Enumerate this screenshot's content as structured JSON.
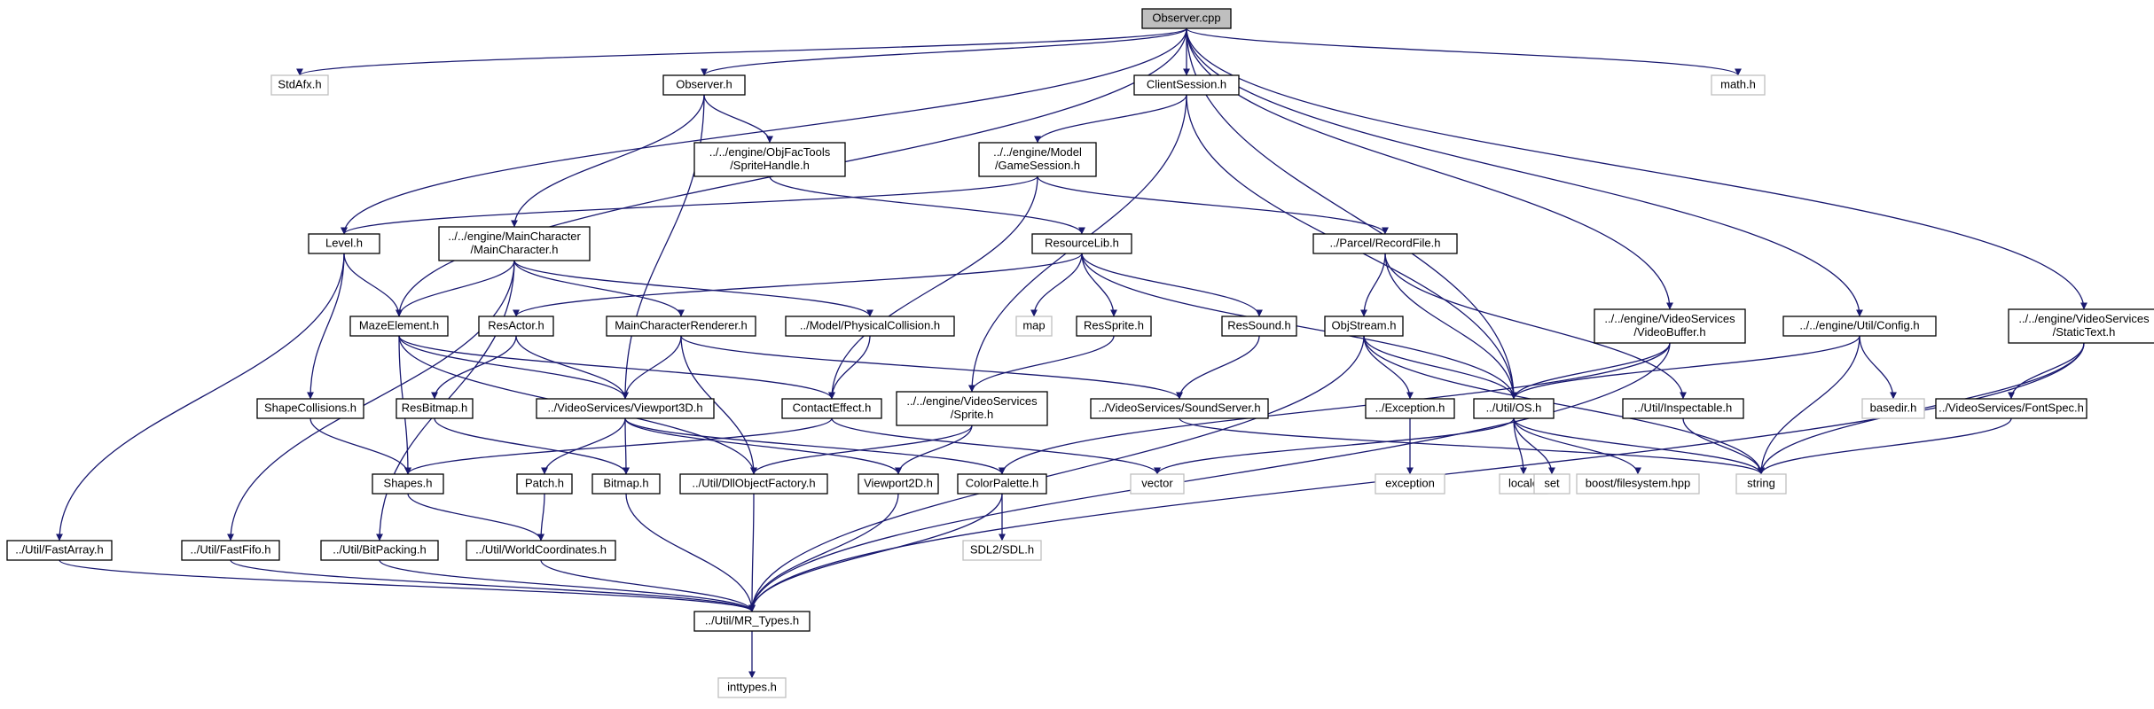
{
  "colors": {
    "edge": "#191970",
    "main_fill": "#bfbfbf",
    "box_stroke": "#000000",
    "external_stroke": "#bfbfbf"
  },
  "nodes": {
    "observer_cpp": {
      "lines": [
        "Observer.cpp"
      ],
      "kind": "main"
    },
    "stdafx_h": {
      "lines": [
        "StdAfx.h"
      ],
      "kind": "external"
    },
    "observer_h": {
      "lines": [
        "Observer.h"
      ],
      "kind": "local"
    },
    "clientsession_h": {
      "lines": [
        "ClientSession.h"
      ],
      "kind": "local"
    },
    "math_h": {
      "lines": [
        "math.h"
      ],
      "kind": "external"
    },
    "spritehandle_h": {
      "lines": [
        "../../engine/ObjFacTools",
        "/SpriteHandle.h"
      ],
      "kind": "local"
    },
    "gamesession_h": {
      "lines": [
        "../../engine/Model",
        "/GameSession.h"
      ],
      "kind": "local"
    },
    "level_h": {
      "lines": [
        "Level.h"
      ],
      "kind": "local"
    },
    "maincharacter_h": {
      "lines": [
        "../../engine/MainCharacter",
        "/MainCharacter.h"
      ],
      "kind": "local"
    },
    "resourcelib_h": {
      "lines": [
        "ResourceLib.h"
      ],
      "kind": "local"
    },
    "recordfile_h": {
      "lines": [
        "../Parcel/RecordFile.h"
      ],
      "kind": "local"
    },
    "videobuffer_h": {
      "lines": [
        "../../engine/VideoServices",
        "/VideoBuffer.h"
      ],
      "kind": "local"
    },
    "config_h": {
      "lines": [
        "../../engine/Util/Config.h"
      ],
      "kind": "local"
    },
    "statictext_h": {
      "lines": [
        "../../engine/VideoServices",
        "/StaticText.h"
      ],
      "kind": "local"
    },
    "mazeelement_h": {
      "lines": [
        "MazeElement.h"
      ],
      "kind": "local"
    },
    "resactor_h": {
      "lines": [
        "ResActor.h"
      ],
      "kind": "local"
    },
    "maincharrenderer_h": {
      "lines": [
        "MainCharacterRenderer.h"
      ],
      "kind": "local"
    },
    "physicalcollision_h": {
      "lines": [
        "../Model/PhysicalCollision.h"
      ],
      "kind": "local"
    },
    "map": {
      "lines": [
        "map"
      ],
      "kind": "external"
    },
    "ressprite_h": {
      "lines": [
        "ResSprite.h"
      ],
      "kind": "local"
    },
    "ressound_h": {
      "lines": [
        "ResSound.h"
      ],
      "kind": "local"
    },
    "objstream_h": {
      "lines": [
        "ObjStream.h"
      ],
      "kind": "local"
    },
    "basedir_h": {
      "lines": [
        "basedir.h"
      ],
      "kind": "external"
    },
    "shapecollisions_h": {
      "lines": [
        "ShapeCollisions.h"
      ],
      "kind": "local"
    },
    "resbitmap_h": {
      "lines": [
        "ResBitmap.h"
      ],
      "kind": "local"
    },
    "viewport3d_h": {
      "lines": [
        "../VideoServices/Viewport3D.h"
      ],
      "kind": "local"
    },
    "contacteffect_h": {
      "lines": [
        "ContactEffect.h"
      ],
      "kind": "local"
    },
    "sprite_h": {
      "lines": [
        "../../engine/VideoServices",
        "/Sprite.h"
      ],
      "kind": "local"
    },
    "soundserver_h": {
      "lines": [
        "../VideoServices/SoundServer.h"
      ],
      "kind": "local"
    },
    "exception_h": {
      "lines": [
        "../Exception.h"
      ],
      "kind": "local"
    },
    "os_h": {
      "lines": [
        "../Util/OS.h"
      ],
      "kind": "local"
    },
    "inspectable_h": {
      "lines": [
        "../Util/Inspectable.h"
      ],
      "kind": "local"
    },
    "fontspec_h": {
      "lines": [
        "../VideoServices/FontSpec.h"
      ],
      "kind": "local"
    },
    "shapes_h": {
      "lines": [
        "Shapes.h"
      ],
      "kind": "local"
    },
    "patch_h": {
      "lines": [
        "Patch.h"
      ],
      "kind": "local"
    },
    "bitmap_h": {
      "lines": [
        "Bitmap.h"
      ],
      "kind": "local"
    },
    "dllobjectfactory_h": {
      "lines": [
        "../Util/DllObjectFactory.h"
      ],
      "kind": "local"
    },
    "viewport2d_h": {
      "lines": [
        "Viewport2D.h"
      ],
      "kind": "local"
    },
    "colorpalette_h": {
      "lines": [
        "ColorPalette.h"
      ],
      "kind": "local"
    },
    "vector": {
      "lines": [
        "vector"
      ],
      "kind": "external"
    },
    "exception": {
      "lines": [
        "exception"
      ],
      "kind": "external"
    },
    "locale": {
      "lines": [
        "locale"
      ],
      "kind": "external"
    },
    "set": {
      "lines": [
        "set"
      ],
      "kind": "external"
    },
    "boost_filesystem": {
      "lines": [
        "boost/filesystem.hpp"
      ],
      "kind": "external"
    },
    "string": {
      "lines": [
        "string"
      ],
      "kind": "external"
    },
    "sdl_h": {
      "lines": [
        "SDL2/SDL.h"
      ],
      "kind": "external"
    },
    "fastarray_h": {
      "lines": [
        "../Util/FastArray.h"
      ],
      "kind": "local"
    },
    "fastfifo_h": {
      "lines": [
        "../Util/FastFifo.h"
      ],
      "kind": "local"
    },
    "bitpacking_h": {
      "lines": [
        "../Util/BitPacking.h"
      ],
      "kind": "local"
    },
    "worldcoordinates_h": {
      "lines": [
        "../Util/WorldCoordinates.h"
      ],
      "kind": "local"
    },
    "mr_types_h": {
      "lines": [
        "../Util/MR_Types.h"
      ],
      "kind": "local"
    },
    "inttypes_h": {
      "lines": [
        "inttypes.h"
      ],
      "kind": "external"
    }
  },
  "edges": [
    [
      "observer_cpp",
      "stdafx_h"
    ],
    [
      "observer_cpp",
      "observer_h"
    ],
    [
      "observer_cpp",
      "clientsession_h"
    ],
    [
      "observer_cpp",
      "math_h"
    ],
    [
      "observer_cpp",
      "level_h"
    ],
    [
      "observer_cpp",
      "mazeelement_h"
    ],
    [
      "observer_cpp",
      "os_h"
    ],
    [
      "observer_cpp",
      "videobuffer_h"
    ],
    [
      "observer_cpp",
      "config_h"
    ],
    [
      "observer_cpp",
      "statictext_h"
    ],
    [
      "observer_h",
      "spritehandle_h"
    ],
    [
      "observer_h",
      "maincharacter_h"
    ],
    [
      "observer_h",
      "viewport3d_h"
    ],
    [
      "clientsession_h",
      "gamesession_h"
    ],
    [
      "clientsession_h",
      "sprite_h"
    ],
    [
      "clientsession_h",
      "os_h"
    ],
    [
      "spritehandle_h",
      "resourcelib_h"
    ],
    [
      "gamesession_h",
      "level_h"
    ],
    [
      "gamesession_h",
      "recordfile_h"
    ],
    [
      "gamesession_h",
      "contacteffect_h"
    ],
    [
      "level_h",
      "mazeelement_h"
    ],
    [
      "level_h",
      "shapecollisions_h"
    ],
    [
      "level_h",
      "fastarray_h"
    ],
    [
      "maincharacter_h",
      "mazeelement_h"
    ],
    [
      "maincharacter_h",
      "maincharrenderer_h"
    ],
    [
      "maincharacter_h",
      "physicalcollision_h"
    ],
    [
      "maincharacter_h",
      "fastfifo_h"
    ],
    [
      "maincharacter_h",
      "bitpacking_h"
    ],
    [
      "resourcelib_h",
      "resactor_h"
    ],
    [
      "resourcelib_h",
      "map"
    ],
    [
      "resourcelib_h",
      "ressprite_h"
    ],
    [
      "resourcelib_h",
      "ressound_h"
    ],
    [
      "resourcelib_h",
      "os_h"
    ],
    [
      "recordfile_h",
      "objstream_h"
    ],
    [
      "recordfile_h",
      "os_h"
    ],
    [
      "recordfile_h",
      "inspectable_h"
    ],
    [
      "videobuffer_h",
      "os_h"
    ],
    [
      "videobuffer_h",
      "colorpalette_h"
    ],
    [
      "videobuffer_h",
      "mr_types_h"
    ],
    [
      "config_h",
      "os_h"
    ],
    [
      "config_h",
      "basedir_h"
    ],
    [
      "config_h",
      "string"
    ],
    [
      "statictext_h",
      "fontspec_h"
    ],
    [
      "statictext_h",
      "string"
    ],
    [
      "statictext_h",
      "mr_types_h"
    ],
    [
      "mazeelement_h",
      "viewport3d_h"
    ],
    [
      "mazeelement_h",
      "contacteffect_h"
    ],
    [
      "mazeelement_h",
      "shapes_h"
    ],
    [
      "mazeelement_h",
      "dllobjectfactory_h"
    ],
    [
      "resactor_h",
      "resbitmap_h"
    ],
    [
      "resactor_h",
      "viewport3d_h"
    ],
    [
      "maincharrenderer_h",
      "viewport3d_h"
    ],
    [
      "maincharrenderer_h",
      "soundserver_h"
    ],
    [
      "maincharrenderer_h",
      "dllobjectfactory_h"
    ],
    [
      "physicalcollision_h",
      "contacteffect_h"
    ],
    [
      "ressprite_h",
      "sprite_h"
    ],
    [
      "ressound_h",
      "soundserver_h"
    ],
    [
      "objstream_h",
      "exception_h"
    ],
    [
      "objstream_h",
      "os_h"
    ],
    [
      "objstream_h",
      "string"
    ],
    [
      "objstream_h",
      "mr_types_h"
    ],
    [
      "shapecollisions_h",
      "shapes_h"
    ],
    [
      "resbitmap_h",
      "bitmap_h"
    ],
    [
      "viewport3d_h",
      "patch_h"
    ],
    [
      "viewport3d_h",
      "bitmap_h"
    ],
    [
      "viewport3d_h",
      "viewport2d_h"
    ],
    [
      "viewport3d_h",
      "colorpalette_h"
    ],
    [
      "contacteffect_h",
      "shapes_h"
    ],
    [
      "contacteffect_h",
      "vector"
    ],
    [
      "sprite_h",
      "dllobjectfactory_h"
    ],
    [
      "sprite_h",
      "viewport2d_h"
    ],
    [
      "soundserver_h",
      "string"
    ],
    [
      "exception_h",
      "exception"
    ],
    [
      "os_h",
      "vector"
    ],
    [
      "os_h",
      "locale"
    ],
    [
      "os_h",
      "set"
    ],
    [
      "os_h",
      "boost_filesystem"
    ],
    [
      "os_h",
      "string"
    ],
    [
      "inspectable_h",
      "string"
    ],
    [
      "fontspec_h",
      "string"
    ],
    [
      "shapes_h",
      "worldcoordinates_h"
    ],
    [
      "patch_h",
      "worldcoordinates_h"
    ],
    [
      "bitmap_h",
      "mr_types_h"
    ],
    [
      "dllobjectfactory_h",
      "mr_types_h"
    ],
    [
      "viewport2d_h",
      "mr_types_h"
    ],
    [
      "colorpalette_h",
      "sdl_h"
    ],
    [
      "colorpalette_h",
      "mr_types_h"
    ],
    [
      "fastarray_h",
      "mr_types_h"
    ],
    [
      "fastfifo_h",
      "mr_types_h"
    ],
    [
      "bitpacking_h",
      "mr_types_h"
    ],
    [
      "worldcoordinates_h",
      "mr_types_h"
    ],
    [
      "mr_types_h",
      "inttypes_h"
    ]
  ]
}
